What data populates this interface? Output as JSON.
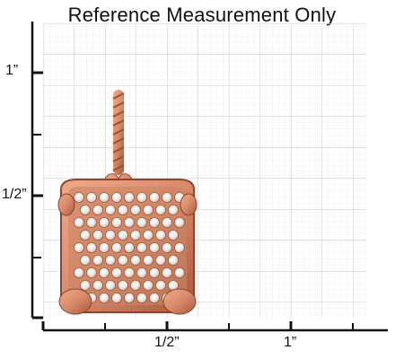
{
  "title": "Reference Measurement Only",
  "axis_labels": {
    "y_one_inch": "1”",
    "y_half_inch": "1/2”",
    "x_half_inch": "1/2”",
    "x_one_inch": "1”"
  },
  "colors": {
    "grid": "#d4d4d4",
    "axis": "#111111",
    "rose_gold": "#d98a6a",
    "rose_gold_dark": "#a8583d",
    "stone": "#f4f0ea"
  },
  "image": {
    "subject": "rose-gold-pave-pendant"
  }
}
